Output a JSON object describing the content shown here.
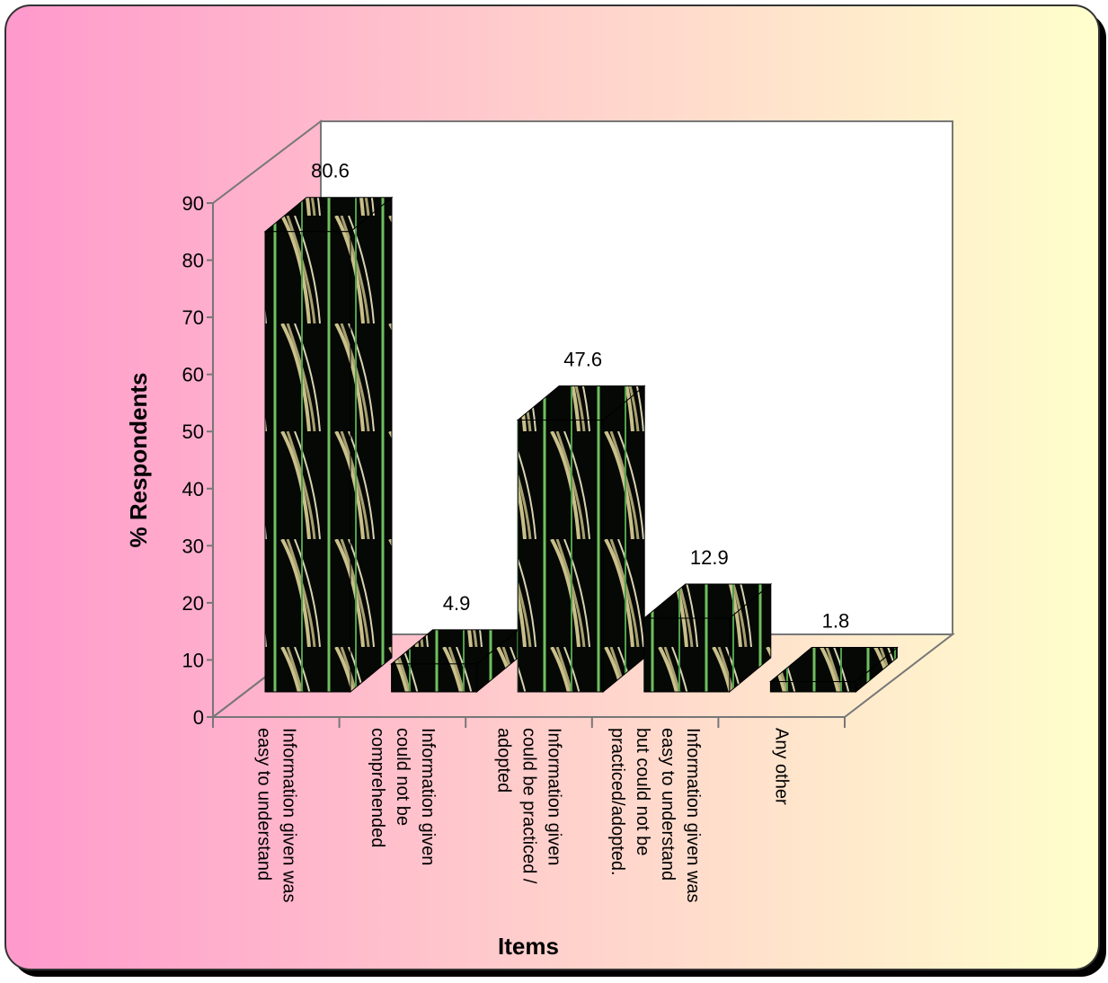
{
  "chart_data": {
    "type": "bar3d",
    "y_label": "% Respondents",
    "x_label": "Items",
    "categories": [
      "Information given was\neasy to understand",
      "Information given\ncould not be\ncomprehended",
      "Information given\ncould be practiced /\nadopted",
      "Information given was\neasy to understand\nbut could not be\npracticed/adopted.",
      "Any other"
    ],
    "values": [
      80.6,
      4.9,
      47.6,
      12.9,
      1.8
    ],
    "ylim": [
      0,
      90
    ],
    "yticks": [
      0,
      10,
      20,
      30,
      40,
      50,
      60,
      70,
      80,
      90
    ]
  }
}
